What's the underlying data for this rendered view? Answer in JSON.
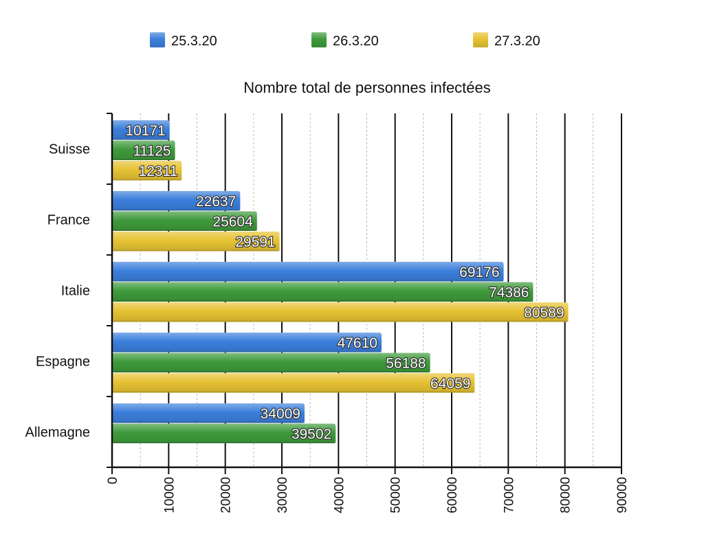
{
  "chart_data": {
    "type": "bar",
    "orientation": "horizontal",
    "title": "Nombre total de personnes infectées",
    "xlabel": "",
    "ylabel": "",
    "categories": [
      "Suisse",
      "France",
      "Italie",
      "Espagne",
      "Allemagne"
    ],
    "series": [
      {
        "name": "25.3.20",
        "color": "#3b7fdc",
        "values": [
          10171,
          22637,
          69176,
          47610,
          34009
        ]
      },
      {
        "name": "26.3.20",
        "color": "#3f9a3b",
        "values": [
          11125,
          25604,
          74386,
          56188,
          39502
        ]
      },
      {
        "name": "27.3.20",
        "color": "#e6c233",
        "values": [
          12311,
          29591,
          80589,
          64059,
          null
        ]
      }
    ],
    "xlim": [
      0,
      90000
    ],
    "xticks": [
      "0",
      "10000",
      "20000",
      "30000",
      "40000",
      "50000",
      "60000",
      "70000",
      "80000",
      "90000"
    ],
    "grid": "vertical",
    "legend_position": "top"
  }
}
